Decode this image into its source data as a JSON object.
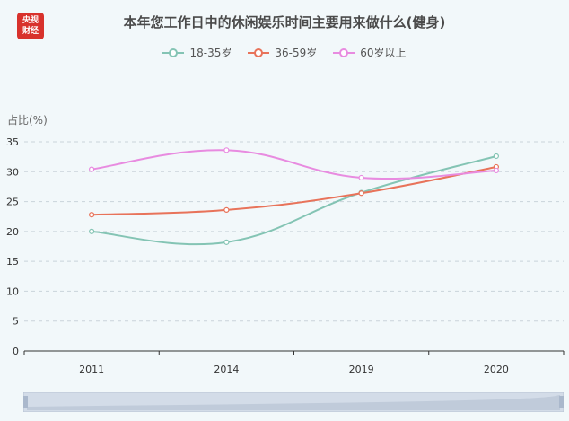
{
  "brand": {
    "line1": "央视",
    "line2": "财经"
  },
  "chart_data": {
    "type": "line",
    "title": "本年您工作日中的休闲娱乐时间主要用来做什么(健身)",
    "ylabel": "占比(%)",
    "categories": [
      "2011",
      "2014",
      "2019",
      "2020"
    ],
    "ylim": [
      0,
      35
    ],
    "yticks": [
      0,
      5,
      10,
      15,
      20,
      25,
      30,
      35
    ],
    "grid": true,
    "legend_position": "top",
    "series": [
      {
        "name": "18-35岁",
        "color": "#84c4b4",
        "values": [
          20.0,
          18.2,
          26.5,
          32.6
        ]
      },
      {
        "name": "36-59岁",
        "color": "#e8735a",
        "values": [
          22.8,
          23.6,
          26.4,
          30.8
        ]
      },
      {
        "name": "60岁以上",
        "color": "#e88be0",
        "values": [
          30.4,
          33.6,
          29.0,
          30.2
        ]
      }
    ]
  }
}
